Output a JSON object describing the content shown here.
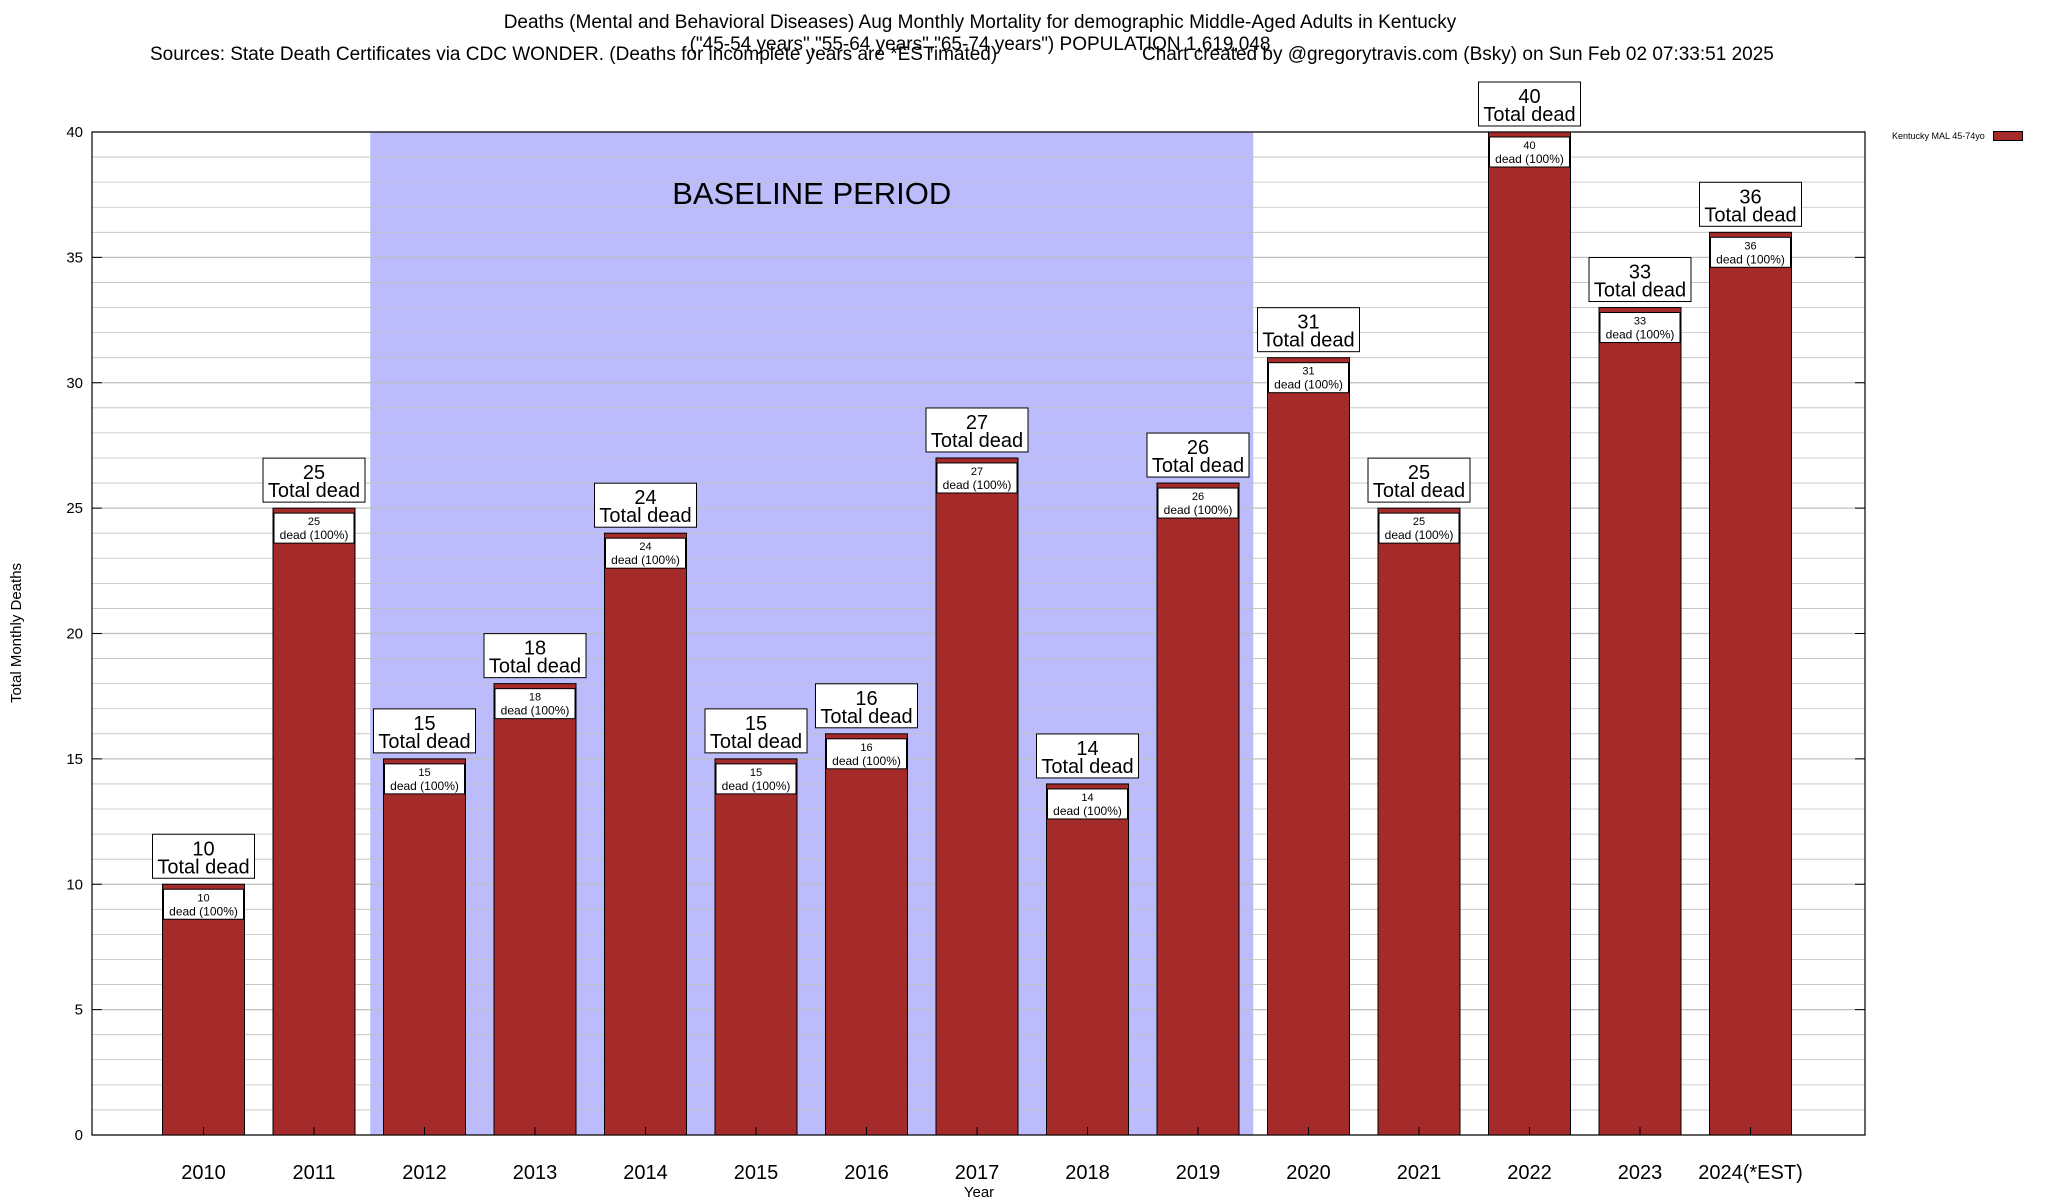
{
  "title": {
    "line1": "Deaths (Mental and Behavioral Diseases) Aug Monthly Mortality for demographic Middle-Aged Adults in Kentucky",
    "line2": "(\"45-54 years\",\"55-64 years\",\"65-74 years\") POPULATION 1,619,048",
    "sources": "Sources: State Death Certificates via CDC WONDER. (Deaths for incomplete years are *ESTimated)",
    "credit": "Chart created by @gregorytravis.com (Bsky) on Sun Feb 02 07:33:51 2025"
  },
  "legend": {
    "label": "Kentucky MAL 45-74yo",
    "color": "#a52a2a"
  },
  "colors": {
    "bar": "#a52a2a",
    "baseline": "#bcbcfc",
    "grid": "#bfbfbf"
  },
  "chart_data": {
    "type": "bar",
    "categories": [
      "2010",
      "2011",
      "2012",
      "2013",
      "2014",
      "2015",
      "2016",
      "2017",
      "2018",
      "2019",
      "2020",
      "2021",
      "2022",
      "2023",
      "2024(*EST)"
    ],
    "series": [
      {
        "name": "Kentucky MAL 45-74yo",
        "values": [
          10,
          25,
          15,
          18,
          24,
          15,
          16,
          27,
          14,
          26,
          31,
          25,
          40,
          33,
          36
        ]
      }
    ],
    "total_label": "Total dead",
    "inner_label": "dead (100%)",
    "xlabel": "Year",
    "ylabel": "Total Monthly Deaths",
    "ylim": [
      0,
      40
    ],
    "yticks": [
      0,
      5,
      10,
      15,
      20,
      25,
      30,
      35,
      40
    ],
    "grid": true,
    "legend_position": "top-right",
    "baseline": {
      "label": "BASELINE PERIOD",
      "from": "2012",
      "to": "2019"
    }
  }
}
